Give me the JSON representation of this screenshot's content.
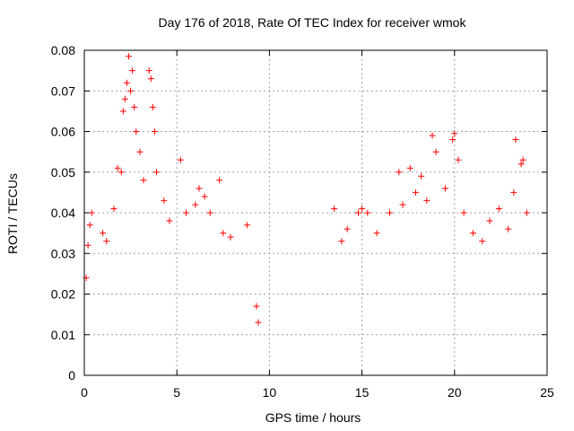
{
  "chart_data": {
    "type": "scatter",
    "title": "Day 176 of 2018, Rate Of TEC Index for receiver wmok",
    "xlabel": "GPS time / hours",
    "ylabel": "ROTI / TECUs",
    "xlim": [
      0,
      25
    ],
    "ylim": [
      0,
      0.08
    ],
    "xticks": [
      "0",
      "5",
      "10",
      "15",
      "20",
      "25"
    ],
    "yticks": [
      "0",
      "0.01",
      "0.02",
      "0.03",
      "0.04",
      "0.05",
      "0.06",
      "0.07",
      "0.08"
    ],
    "grid": true,
    "marker": "+",
    "color": "#ff0000",
    "series": [
      {
        "points": [
          [
            0.1,
            0.024
          ],
          [
            0.2,
            0.032
          ],
          [
            0.3,
            0.037
          ],
          [
            0.4,
            0.04
          ],
          [
            1.0,
            0.035
          ],
          [
            1.2,
            0.033
          ],
          [
            1.6,
            0.041
          ],
          [
            1.8,
            0.051
          ],
          [
            2.0,
            0.05
          ],
          [
            2.1,
            0.065
          ],
          [
            2.2,
            0.068
          ],
          [
            2.3,
            0.072
          ],
          [
            2.4,
            0.0785
          ],
          [
            2.5,
            0.07
          ],
          [
            2.6,
            0.075
          ],
          [
            2.7,
            0.066
          ],
          [
            2.8,
            0.06
          ],
          [
            3.0,
            0.055
          ],
          [
            3.2,
            0.048
          ],
          [
            3.5,
            0.075
          ],
          [
            3.6,
            0.073
          ],
          [
            3.7,
            0.066
          ],
          [
            3.8,
            0.06
          ],
          [
            3.9,
            0.05
          ],
          [
            4.3,
            0.043
          ],
          [
            4.6,
            0.038
          ],
          [
            5.2,
            0.053
          ],
          [
            5.5,
            0.04
          ],
          [
            6.0,
            0.042
          ],
          [
            6.2,
            0.046
          ],
          [
            6.5,
            0.044
          ],
          [
            6.8,
            0.04
          ],
          [
            7.3,
            0.048
          ],
          [
            7.5,
            0.035
          ],
          [
            7.9,
            0.034
          ],
          [
            8.8,
            0.037
          ],
          [
            9.3,
            0.017
          ],
          [
            9.4,
            0.013
          ],
          [
            13.5,
            0.041
          ],
          [
            13.9,
            0.033
          ],
          [
            14.2,
            0.036
          ],
          [
            14.8,
            0.04
          ],
          [
            15.0,
            0.041
          ],
          [
            15.3,
            0.04
          ],
          [
            15.8,
            0.035
          ],
          [
            16.5,
            0.04
          ],
          [
            17.0,
            0.05
          ],
          [
            17.2,
            0.042
          ],
          [
            17.6,
            0.051
          ],
          [
            17.9,
            0.045
          ],
          [
            18.2,
            0.049
          ],
          [
            18.5,
            0.043
          ],
          [
            18.8,
            0.059
          ],
          [
            19.0,
            0.055
          ],
          [
            19.5,
            0.046
          ],
          [
            19.9,
            0.058
          ],
          [
            20.0,
            0.0595
          ],
          [
            20.2,
            0.053
          ],
          [
            20.5,
            0.04
          ],
          [
            21.0,
            0.035
          ],
          [
            21.5,
            0.033
          ],
          [
            21.9,
            0.038
          ],
          [
            22.4,
            0.041
          ],
          [
            22.9,
            0.036
          ],
          [
            23.2,
            0.045
          ],
          [
            23.3,
            0.058
          ],
          [
            23.6,
            0.052
          ],
          [
            23.7,
            0.053
          ],
          [
            23.9,
            0.04
          ]
        ]
      }
    ]
  }
}
